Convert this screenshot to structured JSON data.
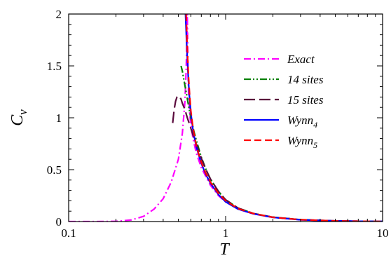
{
  "chart_data": {
    "type": "line",
    "title": "",
    "xlabel": "T",
    "ylabel": {
      "main": "C",
      "sub": "v"
    },
    "x_scale": "log",
    "xlim": [
      0.1,
      10
    ],
    "ylim": [
      0,
      2
    ],
    "x_ticks": [
      {
        "value": 0.1,
        "label": "0.1"
      },
      {
        "value": 1,
        "label": "1"
      },
      {
        "value": 10,
        "label": "10"
      }
    ],
    "y_ticks": [
      {
        "value": 0,
        "label": "0"
      },
      {
        "value": 0.5,
        "label": "0.5"
      },
      {
        "value": 1,
        "label": "1"
      },
      {
        "value": 1.5,
        "label": "1.5"
      },
      {
        "value": 2,
        "label": "2"
      }
    ],
    "grid": false,
    "legend_position": "top-right",
    "series": [
      {
        "name": "Exact",
        "name_sub": "",
        "color": "#ff00ff",
        "dash": "dash-dot",
        "x": [
          0.1,
          0.15,
          0.2,
          0.25,
          0.3,
          0.35,
          0.4,
          0.45,
          0.5,
          0.53,
          0.55,
          0.56,
          0.565,
          0.57,
          0.575,
          0.58,
          0.59,
          0.6,
          0.62,
          0.65,
          0.7,
          0.8,
          0.9,
          1.0,
          1.2,
          1.5,
          2,
          3,
          5,
          7,
          10
        ],
        "y": [
          0.0,
          0.0,
          0.002,
          0.015,
          0.05,
          0.12,
          0.22,
          0.38,
          0.6,
          0.85,
          1.15,
          1.45,
          1.7,
          2.0,
          1.55,
          1.25,
          1.05,
          0.93,
          0.8,
          0.66,
          0.52,
          0.35,
          0.25,
          0.19,
          0.12,
          0.075,
          0.04,
          0.017,
          0.006,
          0.003,
          0.001
        ]
      },
      {
        "name": "14 sites",
        "name_sub": "",
        "color": "#008000",
        "dash": "dash-dot-dot",
        "x": [
          0.52,
          0.53,
          0.54,
          0.56,
          0.58,
          0.6,
          0.63,
          0.66,
          0.7,
          0.75,
          0.8,
          0.9,
          1.0,
          1.2,
          1.5,
          2,
          3,
          5,
          7,
          10
        ],
        "y": [
          1.5,
          1.45,
          1.38,
          1.25,
          1.12,
          1.0,
          0.86,
          0.75,
          0.62,
          0.5,
          0.41,
          0.29,
          0.21,
          0.13,
          0.078,
          0.042,
          0.018,
          0.006,
          0.003,
          0.001
        ]
      },
      {
        "name": "15 sites",
        "name_sub": "",
        "color": "#5a0a3c",
        "dash": "long-dash",
        "x": [
          0.46,
          0.47,
          0.48,
          0.49,
          0.5,
          0.51,
          0.52,
          0.53,
          0.55,
          0.57,
          0.6,
          0.63,
          0.66,
          0.7,
          0.75,
          0.8,
          0.9,
          1.0,
          1.2,
          1.5,
          2,
          3,
          5,
          7,
          10
        ],
        "y": [
          0.95,
          1.08,
          1.16,
          1.2,
          1.21,
          1.2,
          1.18,
          1.14,
          1.08,
          1.0,
          0.9,
          0.8,
          0.72,
          0.61,
          0.5,
          0.41,
          0.29,
          0.21,
          0.13,
          0.078,
          0.042,
          0.018,
          0.006,
          0.003,
          0.001
        ]
      },
      {
        "name": "Wynn",
        "name_sub": "4",
        "color": "#0000ff",
        "dash": "solid",
        "x": [
          0.555,
          0.565,
          0.575,
          0.585,
          0.6,
          0.62,
          0.65,
          0.7,
          0.75,
          0.8,
          0.9,
          1.0,
          1.2,
          1.5,
          2,
          3,
          5,
          7,
          10
        ],
        "y": [
          2.0,
          1.7,
          1.45,
          1.25,
          1.05,
          0.88,
          0.72,
          0.56,
          0.45,
          0.37,
          0.26,
          0.19,
          0.12,
          0.075,
          0.04,
          0.017,
          0.006,
          0.003,
          0.001
        ]
      },
      {
        "name": "Wynn",
        "name_sub": "5",
        "color": "#ff0000",
        "dash": "dash",
        "x": [
          0.56,
          0.57,
          0.58,
          0.59,
          0.6,
          0.62,
          0.65,
          0.7,
          0.75,
          0.8,
          0.9,
          1.0,
          1.2,
          1.5,
          2,
          3,
          5,
          7,
          10
        ],
        "y": [
          2.0,
          1.65,
          1.4,
          1.22,
          1.07,
          0.9,
          0.73,
          0.57,
          0.46,
          0.38,
          0.27,
          0.2,
          0.125,
          0.077,
          0.041,
          0.018,
          0.006,
          0.003,
          0.001
        ]
      }
    ]
  }
}
